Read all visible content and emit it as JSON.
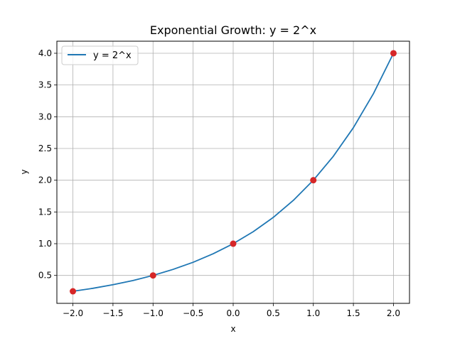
{
  "chart_data": {
    "type": "line",
    "title": "Exponential Growth: y = 2^x",
    "xlabel": "x",
    "ylabel": "y",
    "xlim": [
      -2.2,
      2.2
    ],
    "ylim": [
      0.06,
      4.19
    ],
    "xticks": [
      -2.0,
      -1.5,
      -1.0,
      -0.5,
      0.0,
      0.5,
      1.0,
      1.5,
      2.0
    ],
    "xtick_labels": [
      "−2.0",
      "−1.5",
      "−1.0",
      "−0.5",
      "0.0",
      "0.5",
      "1.0",
      "1.5",
      "2.0"
    ],
    "yticks": [
      0.5,
      1.0,
      1.5,
      2.0,
      2.5,
      3.0,
      3.5,
      4.0
    ],
    "ytick_labels": [
      "0.5",
      "1.0",
      "1.5",
      "2.0",
      "2.5",
      "3.0",
      "3.5",
      "4.0"
    ],
    "grid": true,
    "legend_position": "top-left",
    "series": [
      {
        "name": "y = 2^x",
        "kind": "line",
        "color": "#1f77b4",
        "x": [
          -2.0,
          -1.75,
          -1.5,
          -1.25,
          -1.0,
          -0.75,
          -0.5,
          -0.25,
          0.0,
          0.25,
          0.5,
          0.75,
          1.0,
          1.25,
          1.5,
          1.75,
          2.0
        ],
        "y": [
          0.25,
          0.297,
          0.354,
          0.42,
          0.5,
          0.595,
          0.707,
          0.841,
          1.0,
          1.189,
          1.414,
          1.682,
          2.0,
          2.378,
          2.828,
          3.364,
          4.0
        ]
      },
      {
        "kind": "scatter",
        "color": "#d62728",
        "x": [
          -2.0,
          -1.0,
          0.0,
          1.0,
          2.0
        ],
        "y": [
          0.25,
          0.5,
          1.0,
          2.0,
          4.0
        ]
      }
    ]
  }
}
